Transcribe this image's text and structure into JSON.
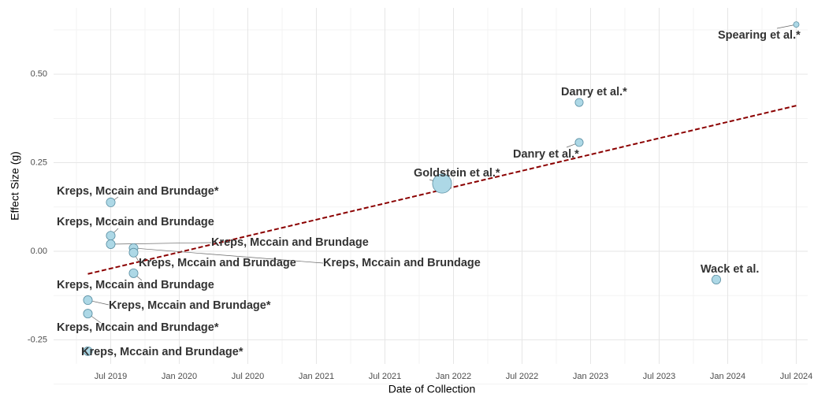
{
  "chart_data": {
    "type": "scatter",
    "x_label": "Date of Collection",
    "y_label": "Effect Size (g)",
    "labels": [
      "Kreps, Mccain and Brundage*",
      "Kreps, Mccain and Brundage*",
      "Kreps, Mccain and Brundage*",
      "Kreps, Mccain and Brundage*",
      "Kreps, Mccain and Brundage",
      "Kreps, Mccain and Brundage",
      "Kreps, Mccain and Brundage",
      "Kreps, Mccain and Brundage",
      "Kreps, Mccain and Brundage",
      "Goldstein et al.*",
      "Danry et al.*",
      "Danry et al.*",
      "Wack et al.",
      "Spearing et al.*"
    ],
    "x": [
      "2019-05",
      "2019-05",
      "2019-05",
      "2019-07",
      "2019-07",
      "2019-07",
      "2019-09",
      "2019-09",
      "2019-09",
      "2021-12",
      "2022-12",
      "2022-12",
      "2023-12",
      "2024-07"
    ],
    "values": [
      -0.282,
      -0.176,
      -0.138,
      0.138,
      0.044,
      0.02,
      0.009,
      -0.004,
      -0.062,
      0.191,
      0.307,
      0.42,
      -0.08,
      0.64
    ],
    "sizes": [
      30,
      30,
      30,
      30,
      30,
      30,
      30,
      30,
      30,
      140,
      25,
      25,
      30,
      12
    ],
    "color": "#add8e6",
    "trend": {
      "x": [
        "2019-05",
        "2024-07"
      ],
      "values": [
        -0.064,
        0.411
      ],
      "color": "#8b0000"
    },
    "xlim": [
      "2019-02",
      "2024-08"
    ],
    "ylim": [
      -0.318,
      0.687
    ],
    "xticks": [
      {
        "value": "2019-07",
        "label": "Jul 2019"
      },
      {
        "value": "2020-01",
        "label": "Jan 2020"
      },
      {
        "value": "2020-07",
        "label": "Jul 2020"
      },
      {
        "value": "2021-01",
        "label": "Jan 2021"
      },
      {
        "value": "2021-07",
        "label": "Jul 2021"
      },
      {
        "value": "2022-01",
        "label": "Jan 2022"
      },
      {
        "value": "2022-07",
        "label": "Jul 2022"
      },
      {
        "value": "2023-01",
        "label": "Jan 2023"
      },
      {
        "value": "2023-07",
        "label": "Jul 2023"
      },
      {
        "value": "2024-01",
        "label": "Jan 2024"
      },
      {
        "value": "2024-07",
        "label": "Jul 2024"
      }
    ],
    "yticks": [
      {
        "value": -0.25,
        "label": "-0.25"
      },
      {
        "value": 0,
        "label": "0.00"
      },
      {
        "value": 0.25,
        "label": "0.25"
      },
      {
        "value": 0.5,
        "label": "0.50"
      }
    ],
    "grid": true
  }
}
